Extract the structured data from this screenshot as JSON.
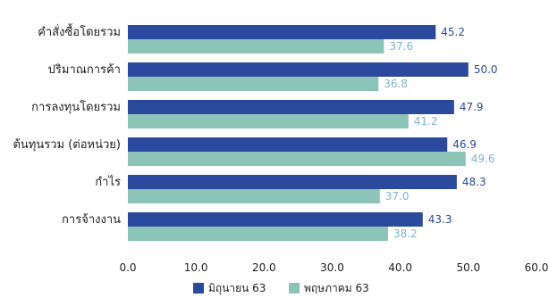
{
  "chart_data": {
    "type": "bar",
    "orientation": "horizontal",
    "categories": [
      "คำสั่งซื้อโดยรวม",
      "ปริมาณการค้า",
      "การลงทุนโดยรวม",
      "ต้นทุนรวม (ต่อหน่วย)",
      "กำไร",
      "การจ้างงาน"
    ],
    "series": [
      {
        "name": "มิถุนายน 63",
        "values": [
          45.2,
          50.0,
          47.9,
          46.9,
          48.3,
          43.3
        ],
        "color": "#2b4a9e",
        "label_color": "#2b4a9e"
      },
      {
        "name": "พฤษภาคม 63",
        "values": [
          37.6,
          36.8,
          41.2,
          49.6,
          37.0,
          38.2
        ],
        "color": "#8cc4b8",
        "label_color": "#7fb5cc"
      }
    ],
    "xlim": [
      0,
      60
    ],
    "xticks": [
      "0.0",
      "10.0",
      "20.0",
      "30.0",
      "40.0",
      "50.0",
      "60.0"
    ],
    "grid": false,
    "legend_position": "bottom"
  }
}
